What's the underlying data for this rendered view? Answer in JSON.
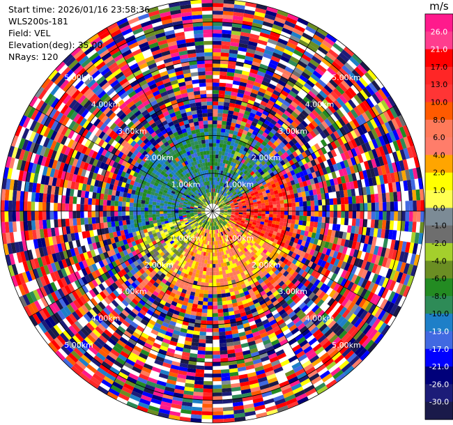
{
  "info": {
    "start_time_label": "Start time:",
    "start_time": "2026/01/16 23:58:36",
    "station": "WLS200s-181",
    "field_label": "Field:",
    "field": "VEL",
    "elevation_label": "Elevation(deg):",
    "elevation": "35.00",
    "nrays_label": "NRays:",
    "nrays": "120"
  },
  "chart_data": {
    "type": "ppi",
    "field": "VEL",
    "nrays": 120,
    "range_rings_km": [
      1.0,
      2.0,
      3.0,
      4.0,
      5.0
    ],
    "ring_labels": [
      "1.00km",
      "2.00km",
      "3.00km",
      "4.00km",
      "5.00km"
    ],
    "max_range_km": 5.6,
    "colorbar": {
      "title": "m/s",
      "vmin": -30.0,
      "vmax": 30.0,
      "ticks": [
        "26.0",
        "21.0",
        "17.0",
        "13.0",
        "10.0",
        "8.0",
        "6.0",
        "4.0",
        "2.0",
        "1.0",
        "0.0",
        "-1.0",
        "-2.0",
        "-4.0",
        "-6.0",
        "-8.0",
        "-10.0",
        "-13.0",
        "-17.0",
        "-21.0",
        "-26.0",
        "-30.0"
      ],
      "colors": [
        "#ff3d8e",
        "#ff0000",
        "#ff2626",
        "#ff3535",
        "#ff5a00",
        "#ff7a5a",
        "#ff7d6a",
        "#ffa500",
        "#ffff00",
        "#ffff52",
        "#7c8b96",
        "#6e6e6e",
        "#a4cf2c",
        "#6b8e23",
        "#238b22",
        "#2e8b57",
        "#1e7fc8",
        "#4169e1",
        "#0000ff",
        "#00007a",
        "#1c1c78",
        "#1a1a4a"
      ],
      "top_color": "#ff1a8c"
    },
    "dominant_regions": [
      {
        "sector": "north-west, near range",
        "velocity": "-6.0 to -10.0"
      },
      {
        "sector": "south / south-east, near range",
        "velocity": "2.0 to 10.0"
      },
      {
        "sector": "east, near range",
        "velocity": "13.0 to 26.0"
      },
      {
        "sector": "outer ranges",
        "velocity": "mixed noise -30.0 to 26.0"
      }
    ]
  }
}
